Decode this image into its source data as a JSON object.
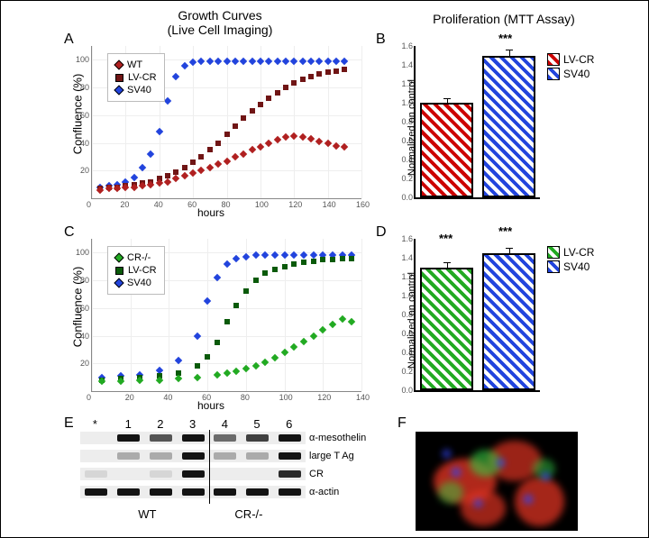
{
  "headers": {
    "left_line1": "Growth Curves",
    "left_line2": "(Live Cell Imaging)",
    "right": "Proliferation (MTT Assay)"
  },
  "panelLabels": {
    "A": "A",
    "B": "B",
    "C": "C",
    "D": "D",
    "E": "E",
    "F": "F"
  },
  "chartA": {
    "ylabel": "Confluence (%)",
    "xlabel": "hours",
    "legend": {
      "wt": "WT",
      "lvcr": "LV-CR",
      "sv40": "SV40"
    },
    "colors": {
      "wt": "#b02020",
      "lvcr": "#701515",
      "sv40": "#2244dd"
    },
    "xlim": [
      0,
      160
    ],
    "ylim": [
      0,
      110
    ],
    "xtick_step": 20,
    "ytick_step": 20,
    "sv40_hours": [
      5,
      10,
      15,
      20,
      25,
      30,
      35,
      40,
      45,
      50,
      55,
      60,
      65,
      70,
      75,
      80,
      85,
      90,
      95,
      100,
      105,
      110,
      115,
      120,
      125,
      130,
      135,
      140,
      145,
      150
    ],
    "sv40_vals": [
      8,
      9,
      10,
      12,
      15,
      22,
      32,
      48,
      70,
      88,
      96,
      98,
      99,
      99,
      99,
      99,
      99,
      99,
      99,
      99,
      99,
      99,
      99,
      99,
      99,
      99,
      99,
      99,
      99,
      99
    ],
    "lvcr_hours": [
      5,
      10,
      15,
      20,
      25,
      30,
      35,
      40,
      45,
      50,
      55,
      60,
      65,
      70,
      75,
      80,
      85,
      90,
      95,
      100,
      105,
      110,
      115,
      120,
      125,
      130,
      135,
      140,
      145,
      150
    ],
    "lvcr_vals": [
      7,
      8,
      8,
      9,
      10,
      11,
      12,
      14,
      16,
      19,
      22,
      26,
      30,
      35,
      40,
      46,
      52,
      58,
      63,
      68,
      72,
      76,
      80,
      83,
      86,
      88,
      90,
      91,
      92,
      93
    ],
    "wt_hours": [
      5,
      10,
      15,
      20,
      25,
      30,
      35,
      40,
      45,
      50,
      55,
      60,
      65,
      70,
      75,
      80,
      85,
      90,
      95,
      100,
      105,
      110,
      115,
      120,
      125,
      130,
      135,
      140,
      145,
      150
    ],
    "wt_vals": [
      6,
      7,
      7,
      8,
      8,
      9,
      10,
      11,
      12,
      14,
      16,
      18,
      20,
      22,
      25,
      27,
      30,
      32,
      35,
      37,
      40,
      42,
      44,
      45,
      44,
      43,
      41,
      40,
      38,
      37
    ]
  },
  "chartC": {
    "ylabel": "Confluence (%)",
    "xlabel": "hours",
    "legend": {
      "crko": "CR-/-",
      "lvcr": "LV-CR",
      "sv40": "SV40"
    },
    "colors": {
      "crko": "#22aa22",
      "lvcr": "#0a5a0a",
      "sv40": "#2244dd"
    },
    "xlim": [
      0,
      140
    ],
    "ylim": [
      0,
      110
    ],
    "xtick_step": 20,
    "ytick_step": 20,
    "sv40_hours": [
      5,
      15,
      25,
      35,
      45,
      55,
      60,
      65,
      70,
      75,
      80,
      85,
      90,
      95,
      100,
      105,
      110,
      115,
      120,
      125,
      130,
      135
    ],
    "sv40_vals": [
      10,
      11,
      12,
      15,
      22,
      40,
      65,
      82,
      92,
      96,
      97,
      98,
      98,
      98,
      98,
      98,
      98,
      98,
      98,
      98,
      98,
      98
    ],
    "lvcr_hours": [
      5,
      15,
      25,
      35,
      45,
      55,
      60,
      65,
      70,
      75,
      80,
      85,
      90,
      95,
      100,
      105,
      110,
      115,
      120,
      125,
      130,
      135
    ],
    "lvcr_vals": [
      8,
      9,
      10,
      11,
      13,
      18,
      25,
      35,
      50,
      62,
      72,
      80,
      85,
      88,
      90,
      92,
      93,
      94,
      95,
      95,
      96,
      96
    ],
    "crko_hours": [
      5,
      15,
      25,
      35,
      45,
      55,
      65,
      70,
      75,
      80,
      85,
      90,
      95,
      100,
      105,
      110,
      115,
      120,
      125,
      130,
      135
    ],
    "crko_vals": [
      7,
      7,
      8,
      8,
      9,
      10,
      12,
      13,
      14,
      16,
      18,
      21,
      24,
      28,
      32,
      36,
      40,
      44,
      48,
      52,
      50
    ]
  },
  "barB": {
    "ylabel": "Normalized on control",
    "sig": "***",
    "legend": {
      "lvcr": "LV-CR",
      "sv40": "SV40"
    },
    "ylim": [
      0,
      1.6
    ],
    "ytick_step": 0.2,
    "values": {
      "lvcr": 1.0,
      "sv40": 1.5
    },
    "errors": {
      "lvcr": 0.04,
      "sv40": 0.05
    }
  },
  "barD": {
    "ylabel": "Normalized on control",
    "sig1": "***",
    "sig2": "***",
    "legend": {
      "lvcr": "LV-CR",
      "sv40": "SV40"
    },
    "ylim": [
      0,
      1.6
    ],
    "ytick_step": 0.2,
    "values": {
      "lvcr": 1.3,
      "sv40": 1.45
    },
    "errors": {
      "lvcr": 0.04,
      "sv40": 0.05
    }
  },
  "blotE": {
    "lanes": [
      "*",
      "1",
      "2",
      "3",
      "4",
      "5",
      "6"
    ],
    "rows": [
      "α-mesothelin",
      "large T Ag",
      "CR",
      "α-actin"
    ],
    "groups": {
      "wt": "WT",
      "crko": "CR-/-"
    }
  },
  "fluorF": {
    "colors": {
      "red": "#dd3322",
      "green": "#33cc44",
      "blue": "#3344ee",
      "bg": "#000000"
    }
  }
}
